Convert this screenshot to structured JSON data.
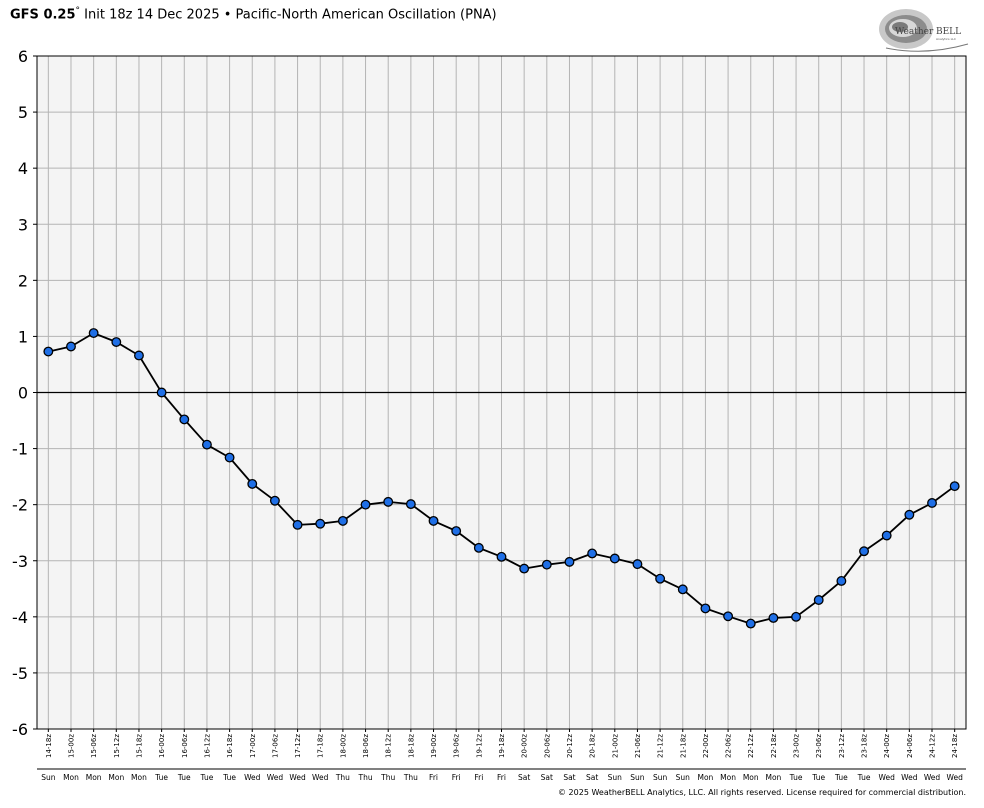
{
  "header": {
    "model": "GFS 0.25",
    "degree": "°",
    "init_text": " Init 18z 14 Dec 2025",
    "bullet": " • ",
    "index_name": "Pacific-North American Oscillation (PNA)"
  },
  "logo": {
    "text_left": "Weather",
    "text_right": "BELL",
    "subtext": "Analytics LLC"
  },
  "copyright": "© 2025 WeatherBELL Analytics, LLC. All rights reserved. License required for commercial distribution.",
  "colors": {
    "plot_background": "#f4f4f4",
    "grid": "#b4b4b4",
    "line": "#000000",
    "marker_fill": "#1f6fe6",
    "marker_edge": "#000000",
    "zero_line": "#000000"
  },
  "chart_data": {
    "type": "line",
    "title": "",
    "xlabel": "",
    "ylabel": "",
    "ylim": [
      -6,
      6
    ],
    "yticks": [
      6,
      5,
      4,
      3,
      2,
      1,
      0,
      -1,
      -2,
      -3,
      -4,
      -5,
      -6
    ],
    "grid": true,
    "categories": [
      "14-18z",
      "15-00z",
      "15-06z",
      "15-12z",
      "15-18z",
      "16-00z",
      "16-06z",
      "16-12z",
      "16-18z",
      "17-00z",
      "17-06z",
      "17-12z",
      "17-18z",
      "18-00z",
      "18-06z",
      "18-12z",
      "18-18z",
      "19-00z",
      "19-06z",
      "19-12z",
      "19-18z",
      "20-00z",
      "20-06z",
      "20-12z",
      "20-18z",
      "21-00z",
      "21-06z",
      "21-12z",
      "21-18z",
      "22-00z",
      "22-06z",
      "22-12z",
      "22-18z",
      "23-00z",
      "23-06z",
      "23-12z",
      "23-18z",
      "24-00z",
      "24-06z",
      "24-12z",
      "24-18z"
    ],
    "days": [
      "Sun",
      "Mon",
      "Mon",
      "Mon",
      "Mon",
      "Tue",
      "Tue",
      "Tue",
      "Tue",
      "Wed",
      "Wed",
      "Wed",
      "Wed",
      "Thu",
      "Thu",
      "Thu",
      "Thu",
      "Fri",
      "Fri",
      "Fri",
      "Fri",
      "Sat",
      "Sat",
      "Sat",
      "Sat",
      "Sun",
      "Sun",
      "Sun",
      "Sun",
      "Mon",
      "Mon",
      "Mon",
      "Mon",
      "Tue",
      "Tue",
      "Tue",
      "Tue",
      "Wed",
      "Wed",
      "Wed",
      "Wed"
    ],
    "series": [
      {
        "values": [
          0.73,
          0.82,
          1.06,
          0.9,
          0.66,
          0.0,
          -0.48,
          -0.93,
          -1.16,
          -1.63,
          -1.93,
          -2.36,
          -2.34,
          -2.29,
          -2.0,
          -1.95,
          -1.99,
          -2.29,
          -2.47,
          -2.77,
          -2.93,
          -3.14,
          -3.07,
          -3.02,
          -2.87,
          -2.96,
          -3.06,
          -3.32,
          -3.51,
          -3.85,
          -3.99,
          -4.12,
          -4.02,
          -4.0,
          -3.7,
          -3.36,
          -2.83,
          -2.55,
          -2.18,
          -1.97,
          -1.67
        ]
      }
    ]
  }
}
